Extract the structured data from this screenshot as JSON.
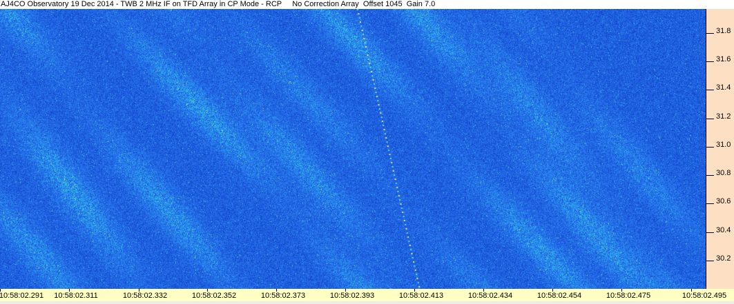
{
  "title": "AJ4CO Observatory 19 Dec 2014 - TWB 2 MHz IF on TFD Array in CP Mode - RCP     No Correction Array  Offset 1045  Gain 7.0",
  "chart_data": {
    "type": "heatmap",
    "description_kind": "dynamic spectrum",
    "yaxis_side": "right",
    "ylim": [
      30.0,
      31.97
    ],
    "y_ticks": [
      "31.8",
      "31.6",
      "31.4",
      "31.2",
      "31.0",
      "30.8",
      "30.6",
      "30.4",
      "30.2"
    ],
    "x_ticks": [
      "10:58:02.291",
      "10:58:02.311",
      "10:58:02.332",
      "10:58:02.352",
      "10:58:02.373",
      "10:58:02.393",
      "10:58:02.413",
      "10:58:02.434",
      "10:58:02.454",
      "10:58:02.475",
      "10:58:02.495"
    ],
    "colormap": [
      "#0a1f8c",
      "#1548d0",
      "#2a7cf0",
      "#30c8e8",
      "#a8f050",
      "#f0f040"
    ],
    "grid": false
  },
  "colors": {
    "title_bg": "#ffffff",
    "yaxis_bg": "#fde0c4",
    "xaxis_bg": "#ffffc4"
  }
}
